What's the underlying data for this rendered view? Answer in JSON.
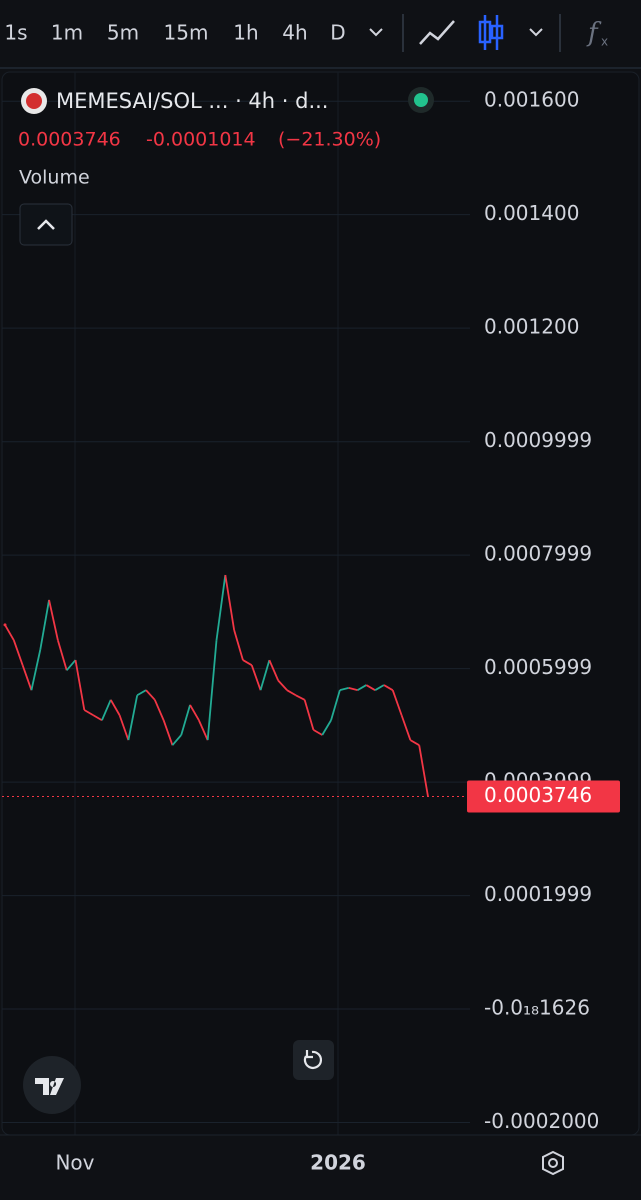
{
  "toolbar": {
    "intervals": [
      "1s",
      "1m",
      "5m",
      "15m",
      "1h",
      "4h",
      "D"
    ],
    "active_interval": 5
  },
  "legend": {
    "symbol": "MEMESAI/SOL ... · 4h · d...",
    "change": "-0.0001014",
    "change_pct": "(−21.30%)",
    "indicator": "Volume"
  },
  "chart_data": {
    "type": "line",
    "up_color": "#22ab94",
    "down_color": "#f23645",
    "grid": true,
    "ylim": [
      -0.000222,
      0.001655
    ],
    "yticks": [
      {
        "value": 0.0016,
        "label": "0.001600"
      },
      {
        "value": 0.0014,
        "label": "0.001400"
      },
      {
        "value": 0.0012,
        "label": "0.001200"
      },
      0.0009999,
      0.0007999,
      0.0005999,
      0.0003999,
      0.0001999,
      {
        "value": -1.626e-22,
        "label": "-0.0₁₈1626"
      },
      {
        "value": -0.0002,
        "label": "-0.0002000"
      }
    ],
    "x_labels": [
      "Nov",
      "2026"
    ],
    "values": [
      0.000677,
      0.00065,
      0.000606,
      0.000562,
      0.000633,
      0.000721,
      0.00065,
      0.000597,
      0.000615,
      0.000527,
      0.000518,
      0.000509,
      0.000545,
      0.000518,
      0.000474,
      0.000553,
      0.000562,
      0.000545,
      0.000509,
      0.000465,
      0.000483,
      0.000536,
      0.000509,
      0.000474,
      0.00065,
      0.000765,
      0.000668,
      0.000615,
      0.000606,
      0.000562,
      0.000615,
      0.000579,
      0.000562,
      0.000553,
      0.000545,
      0.000492,
      0.000483,
      0.000509,
      0.000562,
      0.000566,
      0.000562,
      0.000571,
      0.000562,
      0.000571,
      0.000562,
      0.000518,
      0.000474,
      0.000465,
      0.0003746
    ],
    "last_value": 0.0003746
  }
}
